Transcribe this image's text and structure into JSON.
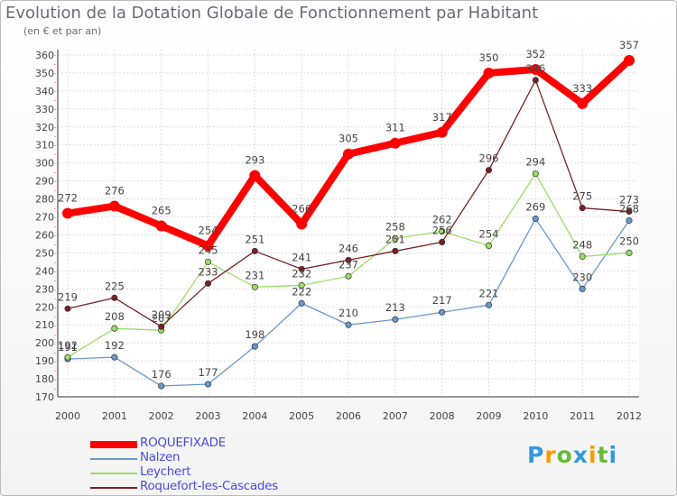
{
  "chart_data": {
    "type": "line",
    "title": "Evolution de la Dotation Globale de Fonctionnement par Habitant",
    "subtitle": "(en € et par an)",
    "x": [
      "2000",
      "2001",
      "2002",
      "2003",
      "2004",
      "2005",
      "2006",
      "2007",
      "2008",
      "2009",
      "2010",
      "2011",
      "2012"
    ],
    "ylim": [
      170,
      360
    ],
    "yticks": [
      170,
      180,
      190,
      200,
      210,
      220,
      230,
      240,
      250,
      260,
      270,
      280,
      290,
      300,
      310,
      320,
      330,
      340,
      350,
      360
    ],
    "grid": true,
    "legend_position": "bottom-left",
    "series": [
      {
        "name": "ROQUEFIXADE",
        "color": "#ff0000",
        "values": [
          272,
          276,
          265,
          254,
          293,
          266,
          305,
          311,
          317,
          350,
          352,
          333,
          357
        ]
      },
      {
        "name": "Nalzen",
        "color": "#6699cc",
        "values": [
          191,
          192,
          176,
          177,
          198,
          222,
          210,
          213,
          217,
          221,
          269,
          230,
          268
        ]
      },
      {
        "name": "Leychert",
        "color": "#99dd66",
        "values": [
          192,
          208,
          207,
          245,
          231,
          232,
          237,
          258,
          262,
          254,
          294,
          248,
          250
        ]
      },
      {
        "name": "Roquefort-les-Cascades",
        "color": "#772222",
        "values": [
          219,
          225,
          209,
          233,
          251,
          241,
          246,
          251,
          256,
          296,
          346,
          275,
          273
        ]
      }
    ]
  },
  "branding": {
    "logo_letters": [
      "P",
      "r",
      "o",
      "x",
      "i",
      "t",
      "i"
    ],
    "logo_colors": [
      "#3399dd",
      "#ff9900",
      "#66bb33",
      "#3399dd",
      "#ff9900",
      "#66bb33",
      "#3399dd"
    ]
  }
}
